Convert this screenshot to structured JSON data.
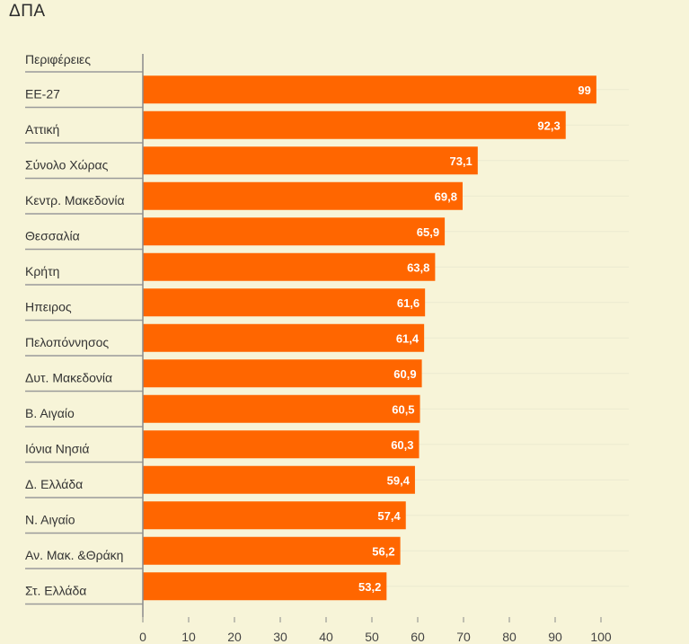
{
  "chart_data": {
    "type": "bar",
    "orientation": "horizontal",
    "title": "ΔΠΑ",
    "header_label": "Περιφέρειες",
    "categories": [
      "ΕΕ-27",
      "Αττική",
      "Σύνολο Χώρας",
      "Κεντρ. Μακεδονία",
      "Θεσσαλία",
      "Κρήτη",
      "Ηπειρος",
      "Πελοπόννησος",
      "Δυτ. Μακεδονία",
      "Β. Αιγαίο",
      "Ιόνια Νησιά",
      "Δ. Ελλάδα",
      "Ν. Αιγαίο",
      "Αν. Μακ. &Θράκη",
      "Στ. Ελλάδα"
    ],
    "values": [
      99,
      92.3,
      73.1,
      69.8,
      65.9,
      63.8,
      61.6,
      61.4,
      60.9,
      60.5,
      60.3,
      59.4,
      57.4,
      56.2,
      53.2
    ],
    "value_labels": [
      "99",
      "92,3",
      "73,1",
      "69,8",
      "65,9",
      "63,8",
      "61,6",
      "61,4",
      "60,9",
      "60,5",
      "60,3",
      "59,4",
      "57,4",
      "56,2",
      "53,2"
    ],
    "xlim": [
      0,
      100
    ],
    "xticks": [
      0,
      10,
      20,
      30,
      40,
      50,
      60,
      70,
      80,
      90,
      100
    ],
    "bar_color": "#ff6600",
    "grid": true,
    "legend": "none"
  }
}
